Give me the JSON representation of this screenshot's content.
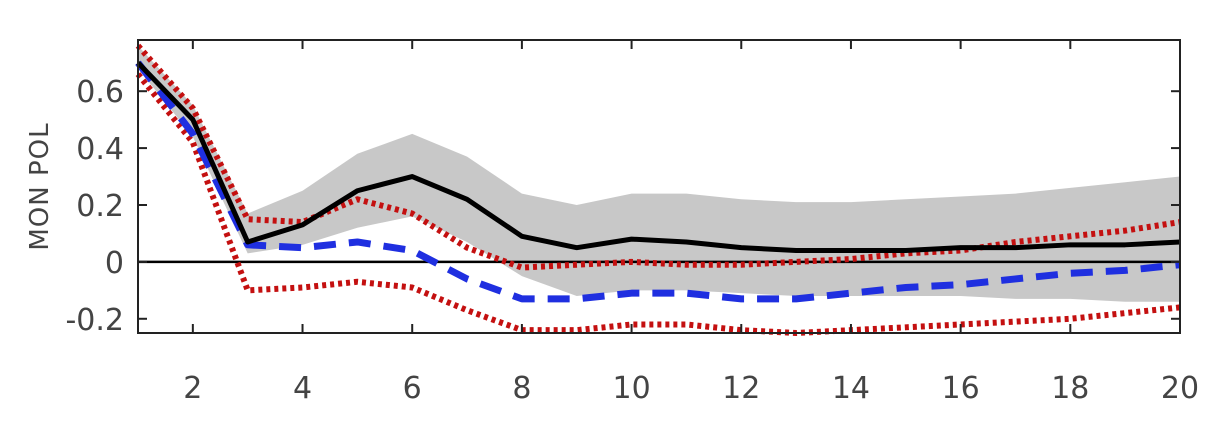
{
  "chart_data": {
    "type": "line",
    "ylabel": "MON POL",
    "xlim": [
      1,
      20
    ],
    "ylim": [
      -0.25,
      0.78
    ],
    "x_ticks": [
      2,
      4,
      6,
      8,
      10,
      12,
      14,
      16,
      18,
      20
    ],
    "y_ticks": [
      -0.2,
      0,
      0.2,
      0.4,
      0.6
    ],
    "y_tick_labels": [
      "-0.2",
      "0",
      "0.2",
      "0.4",
      "0.6"
    ],
    "zero_line": true,
    "grid": false,
    "x": [
      1,
      2,
      3,
      4,
      5,
      6,
      7,
      8,
      9,
      10,
      11,
      12,
      13,
      14,
      15,
      16,
      17,
      18,
      19,
      20
    ],
    "band": {
      "color": "#c8c8c8",
      "lower": [
        0.68,
        0.44,
        0.03,
        0.06,
        0.12,
        0.16,
        0.07,
        -0.05,
        -0.12,
        -0.1,
        -0.1,
        -0.11,
        -0.12,
        -0.12,
        -0.12,
        -0.12,
        -0.13,
        -0.13,
        -0.14,
        -0.14
      ],
      "upper": [
        0.76,
        0.55,
        0.17,
        0.25,
        0.38,
        0.45,
        0.37,
        0.24,
        0.2,
        0.24,
        0.24,
        0.22,
        0.21,
        0.21,
        0.22,
        0.23,
        0.24,
        0.26,
        0.28,
        0.3
      ]
    },
    "series": [
      {
        "color": "#000000",
        "style": "solid",
        "values": [
          0.7,
          0.5,
          0.07,
          0.13,
          0.25,
          0.3,
          0.22,
          0.09,
          0.05,
          0.08,
          0.07,
          0.05,
          0.04,
          0.04,
          0.04,
          0.05,
          0.05,
          0.06,
          0.06,
          0.07
        ]
      },
      {
        "color": "#1f2fe0",
        "style": "dashed",
        "values": [
          0.7,
          0.45,
          0.06,
          0.05,
          0.07,
          0.04,
          -0.06,
          -0.13,
          -0.13,
          -0.11,
          -0.11,
          -0.13,
          -0.13,
          -0.11,
          -0.09,
          -0.08,
          -0.06,
          -0.04,
          -0.03,
          -0.01
        ]
      },
      {
        "color": "#c41010",
        "style": "dotted",
        "values": [
          0.76,
          0.54,
          0.15,
          0.14,
          0.22,
          0.17,
          0.05,
          -0.02,
          -0.01,
          0.0,
          -0.01,
          -0.01,
          0.0,
          0.01,
          0.03,
          0.04,
          0.07,
          0.09,
          0.11,
          0.14
        ]
      },
      {
        "color": "#c41010",
        "style": "dotted",
        "values": [
          0.66,
          0.42,
          -0.1,
          -0.09,
          -0.07,
          -0.09,
          -0.17,
          -0.24,
          -0.24,
          -0.22,
          -0.22,
          -0.24,
          -0.25,
          -0.24,
          -0.23,
          -0.22,
          -0.21,
          -0.2,
          -0.18,
          -0.16
        ]
      }
    ]
  }
}
